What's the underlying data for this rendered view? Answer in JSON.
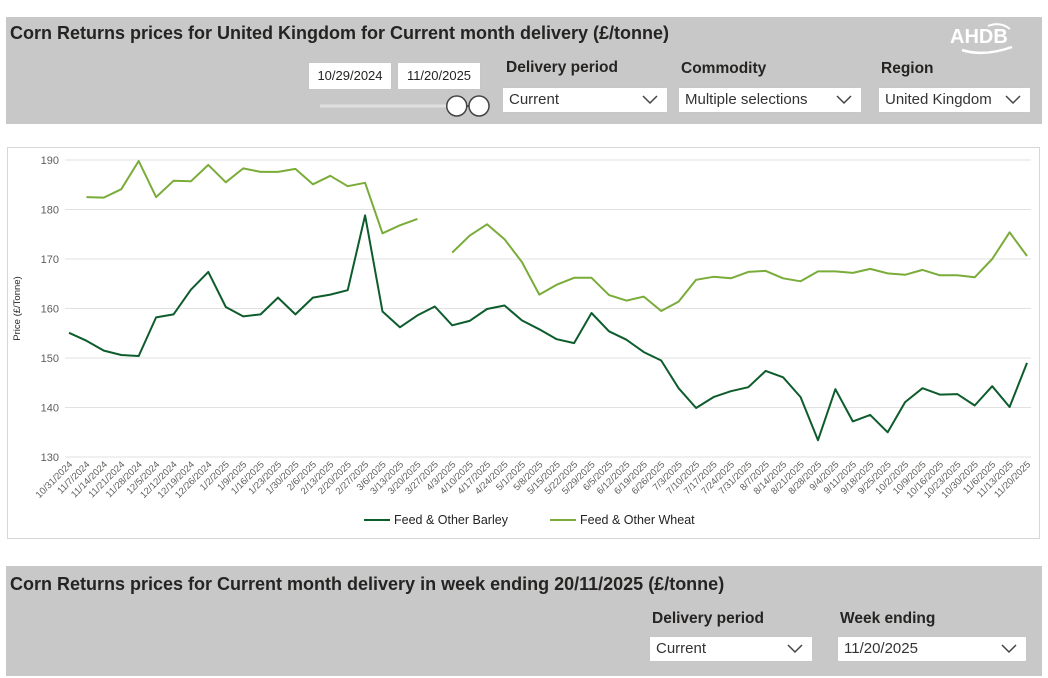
{
  "top_panel": {
    "title": "Corn Returns prices for United Kingdom for Current month delivery (£/tonne)",
    "logo_text": "AHDB",
    "date_start": "10/29/2024",
    "date_end": "11/20/2025",
    "slider_value": {
      "start": 0.86,
      "end": 1.0
    },
    "filters": [
      {
        "label": "Delivery period",
        "value": "Current"
      },
      {
        "label": "Commodity",
        "value": "Multiple selections"
      },
      {
        "label": "Region",
        "value": "United Kingdom"
      }
    ]
  },
  "bottom_panel": {
    "title": "Corn Returns prices for Current month delivery in week ending 20/11/2025 (£/tonne)",
    "filters": [
      {
        "label": "Delivery period",
        "value": "Current"
      },
      {
        "label": "Week ending",
        "value": "11/20/2025"
      }
    ]
  },
  "colors": {
    "barley": "#0d5c2c",
    "wheat": "#7aac3a",
    "panel_bg": "#c8c8c8",
    "grid": "#e1e1e1"
  },
  "chart_data": {
    "type": "line",
    "ylabel": "Price (£/Tonne)",
    "xlabel": "",
    "ylim": [
      130,
      190
    ],
    "yticks": [
      130,
      140,
      150,
      160,
      170,
      180,
      190
    ],
    "grid": true,
    "legend_position": "bottom-center",
    "x": [
      "10/31/2024",
      "11/7/2024",
      "11/14/2024",
      "11/21/2024",
      "11/28/2024",
      "12/5/2024",
      "12/12/2024",
      "12/19/2024",
      "12/26/2024",
      "1/2/2025",
      "1/9/2025",
      "1/16/2025",
      "1/23/2025",
      "1/30/2025",
      "2/6/2025",
      "2/13/2025",
      "2/20/2025",
      "2/27/2025",
      "3/6/2025",
      "3/13/2025",
      "3/20/2025",
      "3/27/2025",
      "4/3/2025",
      "4/10/2025",
      "4/17/2025",
      "4/24/2025",
      "5/1/2025",
      "5/8/2025",
      "5/15/2025",
      "5/22/2025",
      "5/29/2025",
      "6/5/2025",
      "6/12/2025",
      "6/19/2025",
      "6/26/2025",
      "7/3/2025",
      "7/10/2025",
      "7/17/2025",
      "7/24/2025",
      "7/31/2025",
      "8/7/2025",
      "8/14/2025",
      "8/21/2025",
      "8/28/2025",
      "9/4/2025",
      "9/11/2025",
      "9/18/2025",
      "9/25/2025",
      "10/2/2025",
      "10/9/2025",
      "10/16/2025",
      "10/23/2025",
      "10/30/2025",
      "11/6/2025",
      "11/13/2025",
      "11/20/2025"
    ],
    "series": [
      {
        "name": "Feed & Other Barley",
        "values": [
          155.1,
          153.5,
          151.5,
          150.6,
          150.4,
          158.2,
          158.8,
          163.8,
          167.4,
          160.3,
          158.4,
          158.8,
          162.2,
          158.8,
          162.2,
          162.8,
          163.7,
          178.8,
          159.4,
          156.2,
          158.6,
          160.4,
          156.6,
          157.5,
          159.9,
          160.6,
          157.6,
          155.8,
          153.8,
          153.0,
          159.1,
          155.4,
          153.7,
          151.2,
          149.5,
          143.9,
          139.9,
          142.1,
          143.3,
          144.1,
          147.4,
          146.1,
          142.1,
          133.4,
          143.7,
          137.2,
          138.5,
          135.0,
          141.1,
          143.9,
          142.6,
          142.7,
          140.4,
          144.3,
          140.1,
          149.0
        ]
      },
      {
        "name": "Feed & Other Wheat",
        "values": [
          null,
          182.5,
          182.4,
          184.1,
          189.8,
          182.5,
          185.8,
          185.7,
          189.0,
          185.5,
          188.3,
          187.6,
          187.6,
          188.2,
          185.1,
          186.8,
          184.7,
          185.4,
          175.2,
          176.8,
          178.1,
          null,
          171.3,
          174.7,
          177.0,
          174.0,
          169.4,
          162.8,
          164.8,
          166.2,
          166.2,
          162.7,
          161.6,
          162.4,
          159.5,
          161.4,
          165.8,
          166.4,
          166.1,
          167.4,
          167.6,
          166.1,
          165.5,
          167.5,
          167.5,
          167.2,
          168.0,
          167.1,
          166.8,
          167.8,
          166.7,
          166.7,
          166.3,
          170.0,
          175.4,
          170.6
        ]
      }
    ]
  }
}
